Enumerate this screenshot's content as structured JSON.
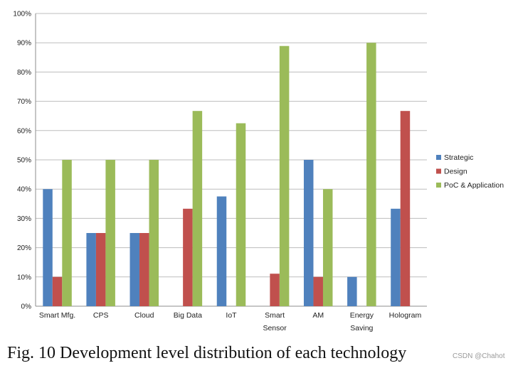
{
  "chart_data": {
    "type": "bar",
    "categories": [
      "Smart Mfg.",
      "CPS",
      "Cloud",
      "Big Data",
      "IoT",
      "Smart Sensor",
      "AM",
      "Energy Saving",
      "Hologram"
    ],
    "category_lines": [
      [
        "Smart Mfg."
      ],
      [
        "CPS"
      ],
      [
        "Cloud"
      ],
      [
        "Big Data"
      ],
      [
        "IoT"
      ],
      [
        "Smart",
        "Sensor"
      ],
      [
        "AM"
      ],
      [
        "Energy",
        "Saving"
      ],
      [
        "Hologram"
      ]
    ],
    "series": [
      {
        "name": "Strategic",
        "color": "#4f81bd",
        "values": [
          40,
          25,
          25,
          0,
          37.5,
          0,
          50,
          10,
          33.3
        ]
      },
      {
        "name": "Design",
        "color": "#c0504d",
        "values": [
          10,
          25,
          25,
          33.3,
          0,
          11.1,
          10,
          0,
          66.7
        ]
      },
      {
        "name": "PoC & Application",
        "color": "#9bbb59",
        "values": [
          50,
          50,
          50,
          66.7,
          62.5,
          88.9,
          40,
          90,
          0
        ]
      }
    ],
    "ylim": [
      0,
      100
    ],
    "yticks": [
      "0%",
      "10%",
      "20%",
      "30%",
      "40%",
      "50%",
      "60%",
      "70%",
      "80%",
      "90%",
      "100%"
    ],
    "grid": true,
    "legend_position": "right",
    "title": "",
    "xlabel": "",
    "ylabel": ""
  },
  "caption": "Fig. 10 Development level distribution of each technology",
  "watermark": "CSDN @Chahot"
}
